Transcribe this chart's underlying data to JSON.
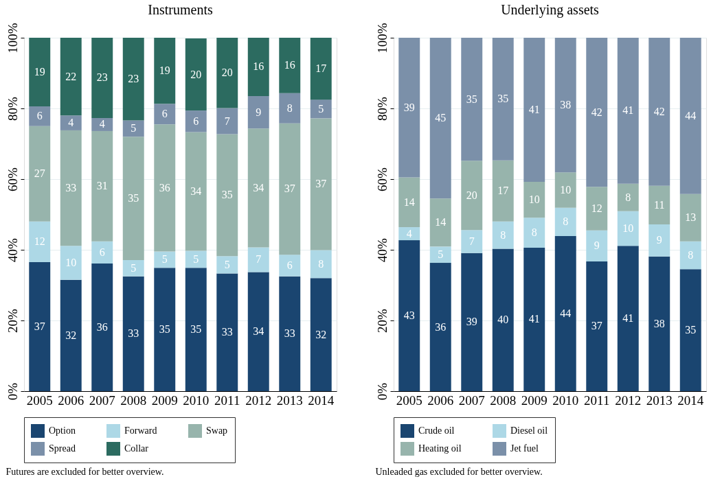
{
  "chart_data": [
    {
      "type": "bar",
      "stacked": true,
      "title": "Instruments",
      "categories": [
        "2005",
        "2006",
        "2007",
        "2008",
        "2009",
        "2010",
        "2011",
        "2012",
        "2013",
        "2014"
      ],
      "series": [
        {
          "name": "Option",
          "color": "#1a4570",
          "values": [
            36.5,
            31.5,
            36.1,
            32.5,
            34.9,
            34.9,
            33.3,
            33.7,
            32.5,
            32.0
          ],
          "value_labels": [
            "37",
            "32",
            "36",
            "33",
            "35",
            "35",
            "33",
            "34",
            "33",
            "32"
          ]
        },
        {
          "name": "Forward",
          "color": "#add8e6",
          "values": [
            11.5,
            9.6,
            6.3,
            4.6,
            4.6,
            4.8,
            4.9,
            7.0,
            6.1,
            7.9
          ],
          "value_labels": [
            "12",
            "10",
            "6",
            "5",
            "5",
            "5",
            "5",
            "7",
            "6",
            "8"
          ]
        },
        {
          "name": "Swap",
          "color": "#97b4ac",
          "values": [
            27.0,
            32.7,
            31.2,
            34.9,
            36.0,
            33.6,
            34.5,
            33.6,
            37.2,
            37.3
          ],
          "value_labels": [
            "27",
            "33",
            "31",
            "35",
            "36",
            "34",
            "35",
            "34",
            "37",
            "37"
          ]
        },
        {
          "name": "Spread",
          "color": "#7b90a9",
          "values": [
            5.6,
            4.2,
            3.7,
            4.6,
            5.8,
            6.1,
            7.4,
            9.2,
            8.5,
            5.3
          ],
          "value_labels": [
            "6",
            "4",
            "4",
            "5",
            "6",
            "6",
            "7",
            "9",
            "8",
            "5"
          ]
        },
        {
          "name": "Collar",
          "color": "#2c6b60",
          "values": [
            19.4,
            22.0,
            22.7,
            23.4,
            18.7,
            20.4,
            19.9,
            16.5,
            15.7,
            17.5
          ],
          "value_labels": [
            "19",
            "22",
            "23",
            "23",
            "19",
            "20",
            "20",
            "16",
            "16",
            "17"
          ]
        }
      ],
      "ylim": [
        0,
        100
      ],
      "yticks": [
        {
          "value": 0,
          "label": "0%"
        },
        {
          "value": 20,
          "label": "20%"
        },
        {
          "value": 40,
          "label": "40%"
        },
        {
          "value": 60,
          "label": "60%"
        },
        {
          "value": 80,
          "label": "80%"
        },
        {
          "value": 100,
          "label": "100%"
        }
      ],
      "grid": "y",
      "legend": "bottom",
      "annotations": [
        "Futures are excluded for better overview."
      ]
    },
    {
      "type": "bar",
      "stacked": true,
      "title": "Underlying assets",
      "categories": [
        "2005",
        "2006",
        "2007",
        "2008",
        "2009",
        "2010",
        "2011",
        "2012",
        "2013",
        "2014"
      ],
      "series": [
        {
          "name": "Crude oil",
          "color": "#1a4570",
          "values": [
            42.7,
            36.3,
            39.1,
            40.3,
            40.6,
            43.9,
            36.7,
            41.1,
            38.1,
            34.5
          ],
          "value_labels": [
            "43",
            "36",
            "39",
            "40",
            "41",
            "44",
            "37",
            "41",
            "38",
            "35"
          ]
        },
        {
          "name": "Diesel oil",
          "color": "#add8e6",
          "values": [
            3.7,
            4.6,
            6.5,
            7.7,
            8.5,
            8.0,
            8.8,
            9.8,
            9.1,
            7.9
          ],
          "value_labels": [
            "4",
            "5",
            "7",
            "8",
            "8",
            "8",
            "9",
            "10",
            "9",
            "8"
          ]
        },
        {
          "name": "Heating oil",
          "color": "#97b4ac",
          "values": [
            14.1,
            13.6,
            19.6,
            17.3,
            10.1,
            10.0,
            12.3,
            7.8,
            10.9,
            13.4
          ],
          "value_labels": [
            "14",
            "14",
            "20",
            "17",
            "10",
            "10",
            "12",
            "8",
            "11",
            "13"
          ]
        },
        {
          "name": "Jet fuel",
          "color": "#7b90a9",
          "values": [
            39.5,
            45.5,
            34.8,
            34.7,
            40.8,
            38.1,
            42.2,
            41.3,
            41.9,
            44.2
          ],
          "value_labels": [
            "39",
            "45",
            "35",
            "35",
            "41",
            "38",
            "42",
            "41",
            "42",
            "44"
          ]
        }
      ],
      "ylim": [
        0,
        100
      ],
      "yticks": [
        {
          "value": 0,
          "label": "0%"
        },
        {
          "value": 20,
          "label": "20%"
        },
        {
          "value": 40,
          "label": "40%"
        },
        {
          "value": 60,
          "label": "60%"
        },
        {
          "value": 80,
          "label": "80%"
        },
        {
          "value": 100,
          "label": "100%"
        }
      ],
      "grid": "y",
      "legend": "bottom",
      "annotations": [
        "Unleaded gas excluded for better overview."
      ]
    }
  ]
}
